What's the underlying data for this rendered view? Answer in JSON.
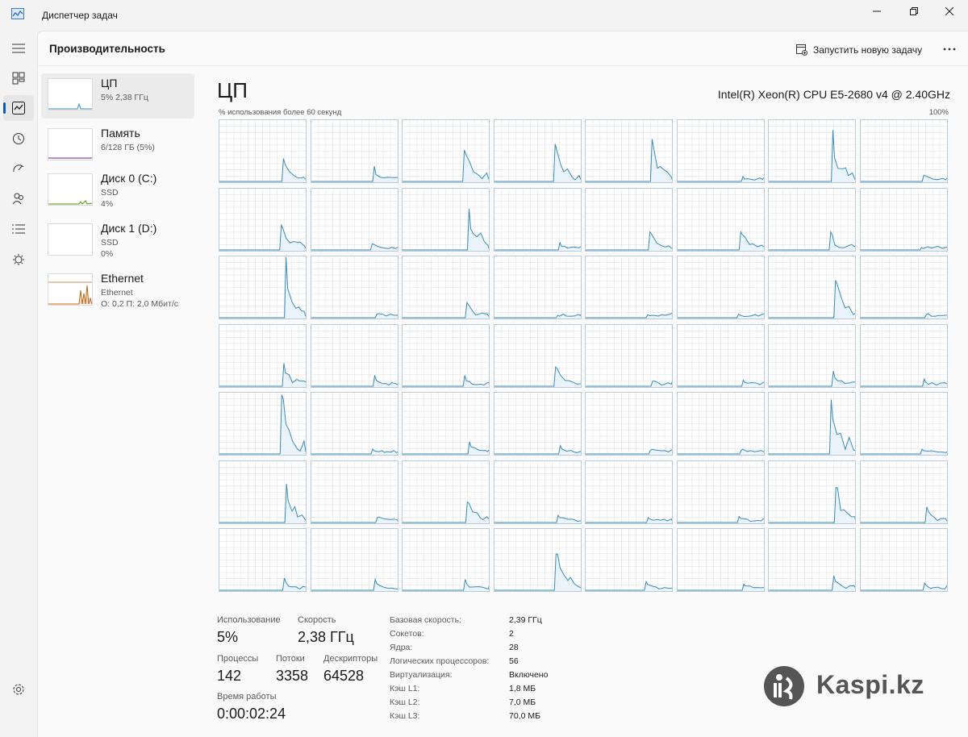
{
  "app": {
    "title": "Диспетчер задач"
  },
  "header": {
    "page_title": "Производительность",
    "new_task_label": "Запустить новую задачу"
  },
  "side_items": [
    {
      "name": "ЦП",
      "line1": "5% 2,38 ГГц",
      "line2": "",
      "selected": true
    },
    {
      "name": "Память",
      "line1": "6/128 ГБ (5%)",
      "line2": ""
    },
    {
      "name": "Диск 0 (C:)",
      "line1": "SSD",
      "line2": "4%"
    },
    {
      "name": "Диск 1 (D:)",
      "line1": "SSD",
      "line2": "0%"
    },
    {
      "name": "Ethernet",
      "line1": "Ethernet",
      "line2": "О: 0,2 П: 2,0 Мбит/с"
    }
  ],
  "cpu": {
    "title": "ЦП",
    "model": "Intel(R) Xeon(R) CPU E5-2680 v4 @ 2.40GHz",
    "graph_label": "% использования более 60 секунд",
    "graph_max": "100%"
  },
  "stats": {
    "usage_label": "Использование",
    "usage_value": "5%",
    "speed_label": "Скорость",
    "speed_value": "2,38 ГГц",
    "processes_label": "Процессы",
    "processes_value": "142",
    "threads_label": "Потоки",
    "threads_value": "3358",
    "handles_label": "Дескрипторы",
    "handles_value": "64528",
    "uptime_label": "Время работы",
    "uptime_value": "0:00:02:24"
  },
  "specs": [
    {
      "key": "Базовая скорость:",
      "value": "2,39 ГГц"
    },
    {
      "key": "Сокетов:",
      "value": "2"
    },
    {
      "key": "Ядра:",
      "value": "28"
    },
    {
      "key": "Логических процессоров:",
      "value": "56"
    },
    {
      "key": "Виртуализация:",
      "value": "Включено"
    },
    {
      "key": "Кэш L1:",
      "value": "1,8 МБ"
    },
    {
      "key": "Кэш L2:",
      "value": "7,0 МБ"
    },
    {
      "key": "Кэш L3:",
      "value": "70,0 МБ"
    }
  ],
  "watermark": {
    "text": "Kaspi.kz"
  },
  "colors": {
    "cpu_line": "#3a8bb5",
    "cpu_fill": "#eaf3f9",
    "grid_line": "#e3e3e3",
    "cell_border": "#b8cbd8",
    "memory_line": "#8a4bb5",
    "disk_line": "#4e9a06",
    "ethernet_line": "#b86a1e",
    "accent": "#005fb8"
  },
  "icons": {
    "rail": [
      "hamburger-menu-icon",
      "processes-icon",
      "performance-icon",
      "app-history-icon",
      "startup-apps-icon",
      "users-icon",
      "details-icon",
      "services-icon"
    ],
    "settings": "settings-icon",
    "new_task": "new-task-icon",
    "more": "more-options-icon"
  },
  "logical_processor_usage_peaks_percent": [
    [
      38,
      25,
      52,
      62,
      70,
      8,
      85,
      10
    ],
    [
      42,
      10,
      68,
      12,
      30,
      30,
      30,
      4
    ],
    [
      100,
      6,
      25,
      4,
      5,
      6,
      62,
      5
    ],
    [
      38,
      18,
      18,
      32,
      8,
      10,
      25,
      12
    ],
    [
      98,
      8,
      20,
      14,
      6,
      6,
      90,
      8
    ],
    [
      64,
      8,
      34,
      12,
      8,
      10,
      58,
      26
    ],
    [
      20,
      18,
      18,
      60,
      14,
      10,
      24,
      12
    ]
  ]
}
